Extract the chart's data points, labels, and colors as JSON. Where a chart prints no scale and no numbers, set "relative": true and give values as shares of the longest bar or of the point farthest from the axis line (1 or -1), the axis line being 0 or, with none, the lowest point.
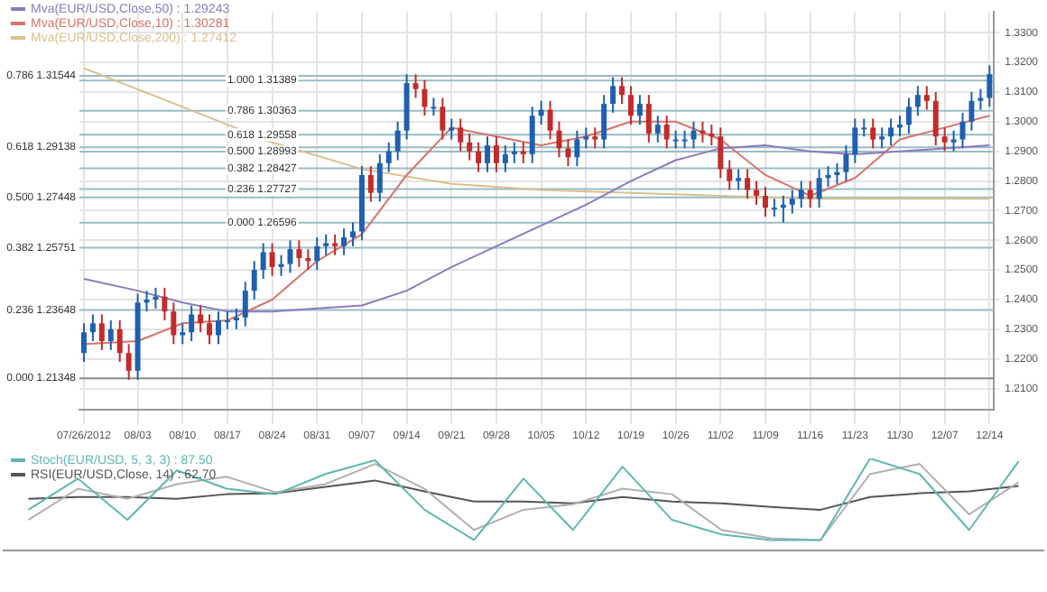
{
  "chart_data": [
    {
      "type": "candlestick",
      "categories": [
        "07/26/2012",
        null,
        null,
        null,
        null,
        null,
        "08/03",
        null,
        null,
        null,
        null,
        "08/10",
        null,
        null,
        null,
        null,
        "08/17",
        null,
        null,
        null,
        null,
        "08/24",
        null,
        null,
        null,
        null,
        "08/31",
        null,
        null,
        null,
        null,
        "09/07",
        null,
        null,
        null,
        null,
        "09/14",
        null,
        null,
        null,
        null,
        "09/21",
        null,
        null,
        null,
        null,
        "09/28",
        null,
        null,
        null,
        null,
        "10/05",
        null,
        null,
        null,
        null,
        "10/12",
        null,
        null,
        null,
        null,
        "10/19",
        null,
        null,
        null,
        null,
        "10/26",
        null,
        null,
        null,
        null,
        "11/02",
        null,
        null,
        null,
        null,
        "11/09",
        null,
        null,
        null,
        null,
        "11/16",
        null,
        null,
        null,
        null,
        "11/23",
        null,
        null,
        null,
        null,
        "11/30",
        null,
        null,
        null,
        null,
        "12/07",
        null,
        null,
        null,
        null,
        "12/14"
      ],
      "colors": [
        "#1f5fb0",
        "#1f5fb0",
        "#c42a2a",
        "#1f5fb0",
        "#c42a2a",
        "#c42a2a",
        "#1f5fb0",
        "#1f5fb0",
        "#1f5fb0",
        "#c42a2a",
        "#c42a2a",
        "#1f5fb0",
        "#1f5fb0",
        "#c42a2a",
        "#c42a2a",
        "#1f5fb0",
        "#1f5fb0",
        "#1f5fb0",
        "#1f5fb0",
        "#1f5fb0",
        "#1f5fb0",
        "#c42a2a",
        "#1f5fb0",
        "#1f5fb0",
        "#c42a2a",
        "#c42a2a",
        "#1f5fb0",
        "#1f5fb0",
        "#c42a2a",
        "#1f5fb0",
        "#1f5fb0",
        "#1f5fb0",
        "#c42a2a",
        "#1f5fb0",
        "#1f5fb0",
        "#1f5fb0",
        "#1f5fb0",
        "#c42a2a",
        "#c42a2a",
        "#1f5fb0",
        "#c42a2a",
        "#1f5fb0",
        "#c42a2a",
        "#c42a2a",
        "#c42a2a",
        "#1f5fb0",
        "#c42a2a",
        "#1f5fb0",
        "#1f5fb0",
        "#c42a2a",
        "#1f5fb0",
        "#1f5fb0",
        "#c42a2a",
        "#c42a2a",
        "#c42a2a",
        "#1f5fb0",
        "#1f5fb0",
        "#c42a2a",
        "#1f5fb0",
        "#1f5fb0",
        "#c42a2a",
        "#c42a2a",
        "#1f5fb0",
        "#c42a2a",
        "#1f5fb0",
        "#c42a2a",
        "#1f5fb0",
        "#1f5fb0",
        "#1f5fb0",
        "#c42a2a",
        "#c42a2a",
        "#c42a2a",
        "#c42a2a",
        "#1f5fb0",
        "#c42a2a",
        "#c42a2a",
        "#c42a2a",
        "#1f5fb0",
        "#1f5fb0",
        "#1f5fb0",
        "#1f5fb0",
        "#c42a2a",
        "#1f5fb0",
        "#1f5fb0",
        "#1f5fb0",
        "#1f5fb0",
        "#1f5fb0",
        "#1f5fb0",
        "#c42a2a",
        "#1f5fb0",
        "#1f5fb0",
        "#1f5fb0",
        "#1f5fb0",
        "#1f5fb0",
        "#c42a2a",
        "#c42a2a",
        "#c42a2a",
        "#1f5fb0",
        "#1f5fb0",
        "#1f5fb0",
        "#1f5fb0",
        "#1f5fb0"
      ],
      "ohlc": [
        [
          1.222,
          1.232,
          1.219,
          1.229
        ],
        [
          1.229,
          1.235,
          1.226,
          1.232
        ],
        [
          1.232,
          1.235,
          1.223,
          1.226
        ],
        [
          1.226,
          1.233,
          1.223,
          1.23
        ],
        [
          1.23,
          1.233,
          1.219,
          1.222
        ],
        [
          1.222,
          1.225,
          1.213,
          1.216
        ],
        [
          1.216,
          1.242,
          1.213,
          1.239
        ],
        [
          1.239,
          1.243,
          1.236,
          1.24
        ],
        [
          1.24,
          1.244,
          1.237,
          1.241
        ],
        [
          1.241,
          1.244,
          1.233,
          1.236
        ],
        [
          1.236,
          1.239,
          1.225,
          1.228
        ],
        [
          1.228,
          1.232,
          1.225,
          1.229
        ],
        [
          1.229,
          1.238,
          1.226,
          1.235
        ],
        [
          1.235,
          1.238,
          1.229,
          1.232
        ],
        [
          1.232,
          1.235,
          1.225,
          1.228
        ],
        [
          1.228,
          1.236,
          1.225,
          1.233
        ],
        [
          1.233,
          1.236,
          1.23,
          1.233
        ],
        [
          1.233,
          1.237,
          1.23,
          1.234
        ],
        [
          1.234,
          1.246,
          1.231,
          1.243
        ],
        [
          1.243,
          1.253,
          1.24,
          1.25
        ],
        [
          1.25,
          1.259,
          1.247,
          1.256
        ],
        [
          1.256,
          1.259,
          1.248,
          1.251
        ],
        [
          1.251,
          1.255,
          1.248,
          1.252
        ],
        [
          1.252,
          1.26,
          1.249,
          1.257
        ],
        [
          1.257,
          1.26,
          1.251,
          1.254
        ],
        [
          1.254,
          1.257,
          1.25,
          1.253
        ],
        [
          1.253,
          1.261,
          1.25,
          1.258
        ],
        [
          1.258,
          1.262,
          1.255,
          1.259
        ],
        [
          1.259,
          1.262,
          1.255,
          1.258
        ],
        [
          1.258,
          1.264,
          1.255,
          1.261
        ],
        [
          1.261,
          1.266,
          1.258,
          1.263
        ],
        [
          1.263,
          1.285,
          1.26,
          1.282
        ],
        [
          1.282,
          1.285,
          1.273,
          1.276
        ],
        [
          1.276,
          1.289,
          1.273,
          1.286
        ],
        [
          1.286,
          1.293,
          1.283,
          1.29
        ],
        [
          1.29,
          1.3,
          1.287,
          1.297
        ],
        [
          1.297,
          1.316,
          1.294,
          1.313
        ],
        [
          1.313,
          1.316,
          1.308,
          1.311
        ],
        [
          1.311,
          1.314,
          1.302,
          1.305
        ],
        [
          1.305,
          1.308,
          1.302,
          1.305
        ],
        [
          1.305,
          1.308,
          1.294,
          1.297
        ],
        [
          1.297,
          1.301,
          1.294,
          1.298
        ],
        [
          1.298,
          1.301,
          1.29,
          1.293
        ],
        [
          1.293,
          1.296,
          1.287,
          1.29
        ],
        [
          1.29,
          1.293,
          1.283,
          1.286
        ],
        [
          1.286,
          1.295,
          1.283,
          1.292
        ],
        [
          1.292,
          1.295,
          1.283,
          1.286
        ],
        [
          1.286,
          1.292,
          1.283,
          1.289
        ],
        [
          1.289,
          1.293,
          1.286,
          1.29
        ],
        [
          1.29,
          1.293,
          1.286,
          1.289
        ],
        [
          1.289,
          1.305,
          1.286,
          1.302
        ],
        [
          1.302,
          1.307,
          1.299,
          1.304
        ],
        [
          1.304,
          1.307,
          1.294,
          1.297
        ],
        [
          1.297,
          1.3,
          1.288,
          1.291
        ],
        [
          1.291,
          1.294,
          1.285,
          1.288
        ],
        [
          1.288,
          1.297,
          1.285,
          1.294
        ],
        [
          1.294,
          1.298,
          1.291,
          1.295
        ],
        [
          1.295,
          1.298,
          1.291,
          1.294
        ],
        [
          1.294,
          1.309,
          1.291,
          1.306
        ],
        [
          1.306,
          1.315,
          1.303,
          1.312
        ],
        [
          1.312,
          1.315,
          1.306,
          1.309
        ],
        [
          1.309,
          1.312,
          1.299,
          1.302
        ],
        [
          1.302,
          1.309,
          1.299,
          1.306
        ],
        [
          1.306,
          1.309,
          1.293,
          1.296
        ],
        [
          1.296,
          1.302,
          1.293,
          1.299
        ],
        [
          1.299,
          1.302,
          1.291,
          1.294
        ],
        [
          1.294,
          1.297,
          1.291,
          1.294
        ],
        [
          1.294,
          1.297,
          1.291,
          1.294
        ],
        [
          1.294,
          1.3,
          1.291,
          1.297
        ],
        [
          1.297,
          1.3,
          1.293,
          1.296
        ],
        [
          1.296,
          1.299,
          1.292,
          1.295
        ],
        [
          1.295,
          1.298,
          1.281,
          1.284
        ],
        [
          1.284,
          1.287,
          1.277,
          1.28
        ],
        [
          1.28,
          1.284,
          1.277,
          1.281
        ],
        [
          1.281,
          1.284,
          1.274,
          1.277
        ],
        [
          1.277,
          1.28,
          1.272,
          1.275
        ],
        [
          1.275,
          1.278,
          1.268,
          1.271
        ],
        [
          1.271,
          1.274,
          1.268,
          1.271
        ],
        [
          1.271,
          1.275,
          1.266,
          1.272
        ],
        [
          1.272,
          1.277,
          1.269,
          1.274
        ],
        [
          1.274,
          1.28,
          1.271,
          1.277
        ],
        [
          1.277,
          1.28,
          1.271,
          1.274
        ],
        [
          1.274,
          1.284,
          1.271,
          1.281
        ],
        [
          1.281,
          1.285,
          1.278,
          1.282
        ],
        [
          1.282,
          1.286,
          1.279,
          1.283
        ],
        [
          1.283,
          1.292,
          1.28,
          1.289
        ],
        [
          1.289,
          1.301,
          1.286,
          1.298
        ],
        [
          1.298,
          1.301,
          1.295,
          1.298
        ],
        [
          1.298,
          1.301,
          1.291,
          1.294
        ],
        [
          1.294,
          1.298,
          1.291,
          1.295
        ],
        [
          1.295,
          1.301,
          1.292,
          1.298
        ],
        [
          1.298,
          1.302,
          1.295,
          1.299
        ],
        [
          1.299,
          1.308,
          1.296,
          1.305
        ],
        [
          1.305,
          1.312,
          1.302,
          1.309
        ],
        [
          1.309,
          1.312,
          1.304,
          1.307
        ],
        [
          1.307,
          1.31,
          1.292,
          1.295
        ],
        [
          1.295,
          1.298,
          1.29,
          1.293
        ],
        [
          1.293,
          1.297,
          1.29,
          1.294
        ],
        [
          1.294,
          1.303,
          1.291,
          1.3
        ],
        [
          1.3,
          1.31,
          1.297,
          1.307
        ],
        [
          1.307,
          1.311,
          1.304,
          1.308
        ],
        [
          1.308,
          1.319,
          1.305,
          1.316
        ]
      ],
      "series": [
        {
          "type": "line",
          "name": "Mva(EUR/USD,Close,50) : 1.29243",
          "color": "#8a7bc0",
          "x": [
            "07/26/2012",
            "08/03",
            "08/10",
            "08/17",
            "08/24",
            "08/31",
            "09/07",
            "09/14",
            "09/21",
            "09/28",
            "10/05",
            "10/12",
            "10/19",
            "10/26",
            "11/02",
            "11/09",
            "11/16",
            "11/23",
            "11/30",
            "12/07",
            "12/14"
          ],
          "values": [
            1.247,
            1.243,
            1.239,
            1.236,
            1.236,
            1.237,
            1.238,
            1.243,
            1.251,
            1.258,
            1.265,
            1.272,
            1.28,
            1.287,
            1.291,
            1.292,
            1.29,
            1.289,
            1.29,
            1.291,
            1.292
          ]
        },
        {
          "type": "line",
          "name": "Mva(EUR/USD,Close,10) : 1.30281",
          "color": "#d9736a",
          "x": [
            "07/26/2012",
            "08/03",
            "08/10",
            "08/17",
            "08/24",
            "08/31",
            "09/07",
            "09/14",
            "09/21",
            "09/28",
            "10/05",
            "10/12",
            "10/19",
            "10/26",
            "11/02",
            "11/09",
            "11/16",
            "11/23",
            "11/30",
            "12/07",
            "12/14"
          ],
          "values": [
            1.225,
            1.226,
            1.232,
            1.233,
            1.24,
            1.253,
            1.262,
            1.282,
            1.298,
            1.295,
            1.292,
            1.295,
            1.3,
            1.3,
            1.294,
            1.282,
            1.275,
            1.281,
            1.294,
            1.298,
            1.302
          ]
        },
        {
          "type": "line",
          "name": "Mva(EUR/USD,Close,200) : 1.27412",
          "color": "#d8c08e",
          "x": [
            "07/26/2012",
            "08/10",
            "08/24",
            "09/07",
            "09/21",
            "10/05",
            "10/19",
            "11/02",
            "11/16",
            "11/30",
            "12/14"
          ],
          "values": [
            1.318,
            1.305,
            1.293,
            1.284,
            1.279,
            1.277,
            1.276,
            1.275,
            1.274,
            1.274,
            1.274
          ]
        }
      ],
      "ylim": [
        1.203,
        1.337
      ],
      "yticks": [
        {
          "value": 1.21,
          "label": "1.2100"
        },
        {
          "value": 1.22,
          "label": "1.2200"
        },
        {
          "value": 1.23,
          "label": "1.2300"
        },
        {
          "value": 1.24,
          "label": "1.2400"
        },
        {
          "value": 1.25,
          "label": "1.2500"
        },
        {
          "value": 1.26,
          "label": "1.2600"
        },
        {
          "value": 1.27,
          "label": "1.2700"
        },
        {
          "value": 1.28,
          "label": "1.2800"
        },
        {
          "value": 1.29,
          "label": "1.2900"
        },
        {
          "value": 1.3,
          "label": "1.3000"
        },
        {
          "value": 1.31,
          "label": "1.3100"
        },
        {
          "value": 1.32,
          "label": "1.3200"
        },
        {
          "value": 1.33,
          "label": "1.3300"
        }
      ],
      "grid": true,
      "legend": "top left",
      "ref_lines": [
        {
          "axis": "y",
          "value": 1.31544,
          "color": "#9bbcc4"
        },
        {
          "axis": "y",
          "value": 1.29138,
          "color": "#9bbcc4"
        },
        {
          "axis": "y",
          "value": 1.27448,
          "color": "#9bbcc4"
        },
        {
          "axis": "y",
          "value": 1.25751,
          "color": "#9bbcc4"
        },
        {
          "axis": "y",
          "value": 1.23648,
          "color": "#9bbcc4"
        },
        {
          "axis": "y",
          "value": 1.21348,
          "color": "#8c8c8c"
        },
        {
          "axis": "y",
          "value": 1.31389,
          "color": "#9bbcc4"
        },
        {
          "axis": "y",
          "value": 1.30363,
          "color": "#9bbcc4"
        },
        {
          "axis": "y",
          "value": 1.29558,
          "color": "#9bbcc4"
        },
        {
          "axis": "y",
          "value": 1.28993,
          "color": "#9bbcc4"
        },
        {
          "axis": "y",
          "value": 1.28427,
          "color": "#9bbcc4"
        },
        {
          "axis": "y",
          "value": 1.27727,
          "color": "#9bbcc4"
        },
        {
          "axis": "y",
          "value": 1.26596,
          "color": "#9bbcc4"
        }
      ],
      "annotations": [
        {
          "text": "0.786 1.31544",
          "x": "07/26/2012",
          "y": 1.31544
        },
        {
          "text": "0.618 1.29138",
          "x": "07/26/2012",
          "y": 1.29138
        },
        {
          "text": "0.500 1.27448",
          "x": "07/26/2012",
          "y": 1.27448
        },
        {
          "text": "0.382 1.25751",
          "x": "07/26/2012",
          "y": 1.25751
        },
        {
          "text": "0.236 1.23648",
          "x": "07/26/2012",
          "y": 1.23648
        },
        {
          "text": "0.000 1.21348",
          "x": "07/26/2012",
          "y": 1.21348
        },
        {
          "text": "1.000 1.31389",
          "x": "08/17",
          "y": 1.31389
        },
        {
          "text": "0.786 1.30363",
          "x": "08/17",
          "y": 1.30363
        },
        {
          "text": "0.618 1.29558",
          "x": "08/17",
          "y": 1.29558
        },
        {
          "text": "0.500 1.28993",
          "x": "08/17",
          "y": 1.28993
        },
        {
          "text": "0.382 1.28427",
          "x": "08/17",
          "y": 1.28427
        },
        {
          "text": "0.236 1.27727",
          "x": "08/17",
          "y": 1.27727
        },
        {
          "text": "0.000 1.26596",
          "x": "08/17",
          "y": 1.26596
        }
      ]
    },
    {
      "type": "line",
      "relative": true,
      "categories": [
        null,
        null,
        null,
        null,
        null,
        null,
        null,
        null,
        null,
        null,
        null,
        null,
        null,
        null,
        null,
        null,
        null,
        null,
        null,
        null,
        null
      ],
      "series": [
        {
          "name": "Stoch(EUR/USD, 5, 3, 3) : 87.50",
          "color": "#5fb8b0",
          "values": [
            0.44,
            0.78,
            0.33,
            0.87,
            0.67,
            0.61,
            0.83,
            0.98,
            0.44,
            0.11,
            0.78,
            0.22,
            0.91,
            0.33,
            0.17,
            0.11,
            0.11,
            1,
            0.83,
            0.22,
            0.97
          ]
        },
        {
          "color": "#b0b0b0",
          "values": [
            0.33,
            0.67,
            0.56,
            0.72,
            0.8,
            0.63,
            0.72,
            0.94,
            0.67,
            0.22,
            0.44,
            0.5,
            0.67,
            0.61,
            0.22,
            0.13,
            0.11,
            0.83,
            0.94,
            0.39,
            0.74
          ]
        },
        {
          "name": "RSI(EUR/USD,Close, 14) : 62.70",
          "color": "#555555",
          "values": [
            0.56,
            0.58,
            0.58,
            0.56,
            0.61,
            0.62,
            0.69,
            0.76,
            0.64,
            0.53,
            0.53,
            0.51,
            0.58,
            0.53,
            0.51,
            0.47,
            0.44,
            0.58,
            0.62,
            0.64,
            0.7
          ]
        }
      ],
      "legend": "top left"
    }
  ]
}
